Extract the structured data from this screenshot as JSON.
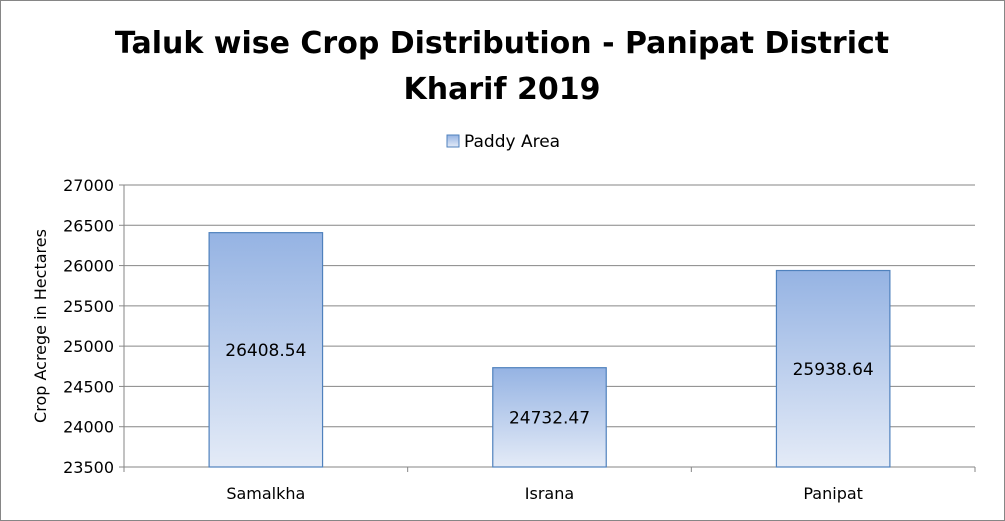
{
  "chart_data": {
    "type": "bar",
    "title_lines": [
      "Taluk wise Crop Distribution - Panipat District",
      "Kharif 2019"
    ],
    "xlabel": "",
    "ylabel": "Crop Acrege in Hectares",
    "categories": [
      "Samalkha",
      "Israna",
      "Panipat"
    ],
    "series": [
      {
        "name": "Paddy Area",
        "values": [
          26408.54,
          24732.47,
          25938.64
        ]
      }
    ],
    "data_labels": [
      "26408.54",
      "24732.47",
      "25938.64"
    ],
    "ylim": [
      23500,
      27000
    ],
    "yticks": [
      23500,
      24000,
      24500,
      25000,
      25500,
      26000,
      26500,
      27000
    ],
    "grid": true,
    "legend_position": "top-center",
    "colors": {
      "bar_fill_top": "#95b3e3",
      "bar_fill_bottom": "#e4ebf7",
      "bar_border": "#4f81bd"
    }
  }
}
